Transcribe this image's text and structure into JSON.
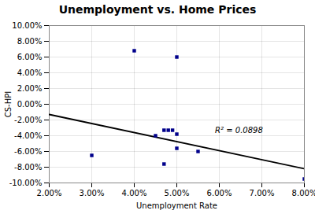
{
  "chart_data": {
    "type": "scatter",
    "title": "Unemployment vs. Home Prices",
    "xlabel": "Unemployment Rate",
    "ylabel": "CS-HPI",
    "x": [
      0.03,
      0.04,
      0.045,
      0.047,
      0.047,
      0.048,
      0.049,
      0.05,
      0.05,
      0.05,
      0.055,
      0.08
    ],
    "values": [
      -0.065,
      0.068,
      -0.04,
      -0.033,
      -0.076,
      -0.033,
      -0.033,
      0.06,
      -0.038,
      -0.056,
      -0.06,
      -0.095
    ],
    "color": "#00008b",
    "marker": "square",
    "trendline": {
      "x": [
        0.02,
        0.08
      ],
      "values": [
        -0.013,
        -0.082
      ],
      "color": "#000000"
    },
    "annotation": {
      "text": "R² = 0.0898",
      "x": 0.059,
      "y": -0.036
    },
    "xlim": [
      0.02,
      0.08
    ],
    "ylim": [
      -0.1,
      0.1
    ],
    "xticks": [
      {
        "value": 0.02,
        "label": "2.00%"
      },
      {
        "value": 0.03,
        "label": "3.00%"
      },
      {
        "value": 0.04,
        "label": "4.00%"
      },
      {
        "value": 0.05,
        "label": "5.00%"
      },
      {
        "value": 0.06,
        "label": "6.00%"
      },
      {
        "value": 0.07,
        "label": "7.00%"
      },
      {
        "value": 0.08,
        "label": "8.00%"
      }
    ],
    "yticks": [
      {
        "value": -0.1,
        "label": "-10.00%"
      },
      {
        "value": -0.08,
        "label": "-8.00%"
      },
      {
        "value": -0.06,
        "label": "-6.00%"
      },
      {
        "value": -0.04,
        "label": "-4.00%"
      },
      {
        "value": -0.02,
        "label": "-2.00%"
      },
      {
        "value": 0.0,
        "label": "0.00%"
      },
      {
        "value": 0.02,
        "label": "2.00%"
      },
      {
        "value": 0.04,
        "label": "4.00%"
      },
      {
        "value": 0.06,
        "label": "6.00%"
      },
      {
        "value": 0.08,
        "label": "8.00%"
      },
      {
        "value": 0.1,
        "label": "10.00%"
      }
    ],
    "grid": true
  }
}
